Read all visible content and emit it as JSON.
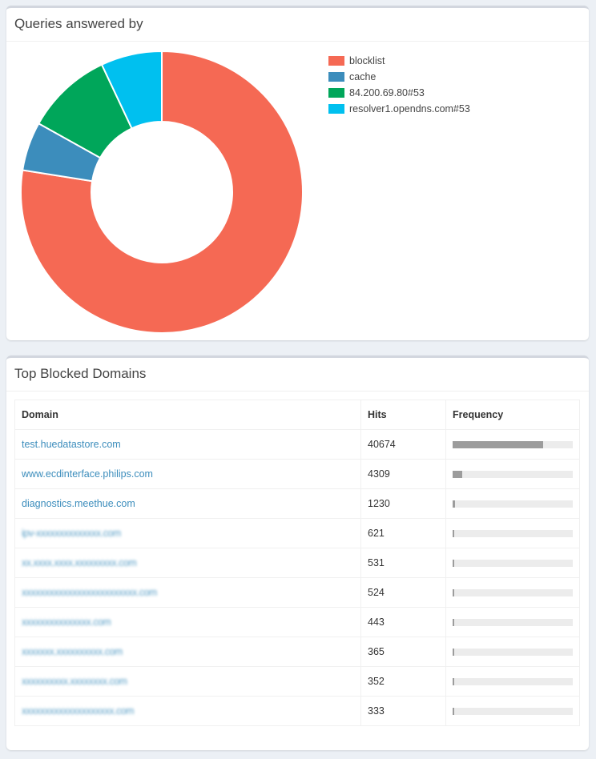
{
  "answered_by": {
    "title": "Queries answered by",
    "legend": [
      {
        "label": "blocklist",
        "color": "#f56954"
      },
      {
        "label": "cache",
        "color": "#3c8dbc"
      },
      {
        "label": "84.200.69.80#53",
        "color": "#00a65a"
      },
      {
        "label": "resolver1.opendns.com#53",
        "color": "#00c0ef"
      }
    ]
  },
  "chart_data": {
    "type": "pie",
    "categories": [
      "blocklist",
      "cache",
      "84.200.69.80#53",
      "resolver1.opendns.com#53"
    ],
    "values": [
      77.5,
      5.6,
      9.9,
      7.0
    ],
    "colors": [
      "#f56954",
      "#3c8dbc",
      "#00a65a",
      "#00c0ef"
    ],
    "legend": "top-right"
  },
  "top_blocked": {
    "title": "Top Blocked Domains",
    "columns": {
      "domain": "Domain",
      "hits": "Hits",
      "frequency": "Frequency"
    },
    "rows": [
      {
        "domain": "test.huedatastore.com",
        "hits": "40674",
        "frequency": 0.75,
        "obscured": false
      },
      {
        "domain": "www.ecdinterface.philips.com",
        "hits": "4309",
        "frequency": 0.08,
        "obscured": false
      },
      {
        "domain": "diagnostics.meethue.com",
        "hits": "1230",
        "frequency": 0.02,
        "obscured": false
      },
      {
        "domain": "ipv-xxxxxxxxxxxxxx.com",
        "hits": "621",
        "frequency": 0.012,
        "obscured": true
      },
      {
        "domain": "xx.xxxx.xxxx.xxxxxxxxx.com",
        "hits": "531",
        "frequency": 0.01,
        "obscured": true
      },
      {
        "domain": "xxxxxxxxxxxxxxxxxxxxxxxxx.com",
        "hits": "524",
        "frequency": 0.01,
        "obscured": true
      },
      {
        "domain": "xxxxxxxxxxxxxxx.com",
        "hits": "443",
        "frequency": 0.009,
        "obscured": true
      },
      {
        "domain": "xxxxxxx.xxxxxxxxxx.com",
        "hits": "365",
        "frequency": 0.008,
        "obscured": true
      },
      {
        "domain": "xxxxxxxxxx.xxxxxxxx.com",
        "hits": "352",
        "frequency": 0.008,
        "obscured": true
      },
      {
        "domain": "xxxxxxxxxxxxxxxxxxxx.com",
        "hits": "333",
        "frequency": 0.007,
        "obscured": true
      }
    ]
  }
}
